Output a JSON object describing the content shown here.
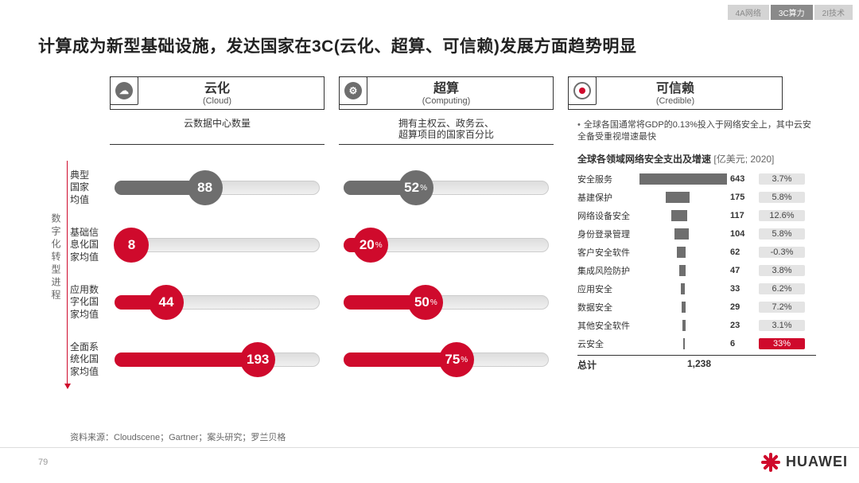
{
  "tabs": [
    {
      "label": "4A网络",
      "active": false
    },
    {
      "label": "3C算力",
      "active": true
    },
    {
      "label": "2I技术",
      "active": false
    }
  ],
  "title": "计算成为新型基础设施，发达国家在3C(云化、超算、可信赖)发展方面趋势明显",
  "columns": [
    {
      "title": "云化",
      "sub": "(Cloud)",
      "subtitle": "云数据中心数量"
    },
    {
      "title": "超算",
      "sub": "(Computing)",
      "subtitle": "拥有主权云、政务云、\n超算项目的国家百分比"
    },
    {
      "title": "可信赖",
      "sub": "(Credible)"
    }
  ],
  "vertical_label": "数字化转型进程",
  "row_labels": [
    "典型\n国家\n均值",
    "基础信\n息化国\n家均值",
    "应用数\n字化国\n家均值",
    "全面系\n统化国\n家均值"
  ],
  "cloud_bars": {
    "type": "horizontal-bubble-bar",
    "max": 200,
    "colors": {
      "avg": "#6e6e6e",
      "stage": "#cf0a2c",
      "track": "#e8e8e8"
    },
    "rows": [
      {
        "value": 88,
        "unit": "",
        "color": "avg",
        "fill_pct": 44
      },
      {
        "value": 8,
        "unit": "",
        "color": "stage",
        "fill_pct": 8
      },
      {
        "value": 44,
        "unit": "",
        "color": "stage",
        "fill_pct": 25
      },
      {
        "value": 193,
        "unit": "",
        "color": "stage",
        "fill_pct": 70
      }
    ]
  },
  "computing_bars": {
    "type": "horizontal-bubble-bar",
    "max": 100,
    "rows": [
      {
        "value": 52,
        "unit": "%",
        "color": "avg",
        "fill_pct": 35
      },
      {
        "value": 20,
        "unit": "%",
        "color": "stage",
        "fill_pct": 13
      },
      {
        "value": 50,
        "unit": "%",
        "color": "stage",
        "fill_pct": 40
      },
      {
        "value": 75,
        "unit": "%",
        "color": "stage",
        "fill_pct": 55
      }
    ]
  },
  "credible": {
    "intro": "全球各国通常将GDP的0.13%投入于网络安全上，其中云安全备受重视增速最快",
    "title": "全球各领域网络安全支出及增速",
    "unit": "[亿美元; 2020]",
    "max_value": 643,
    "bar_color": "#6e6e6e",
    "rows": [
      {
        "label": "安全服务",
        "value": 643,
        "growth": "3.7%",
        "hl": false,
        "offset": 0
      },
      {
        "label": "基建保护",
        "value": 175,
        "growth": "5.8%",
        "hl": false,
        "offset": 60
      },
      {
        "label": "网络设备安全",
        "value": 117,
        "growth": "12.6%",
        "hl": false,
        "offset": 72
      },
      {
        "label": "身份登录管理",
        "value": 104,
        "growth": "5.8%",
        "hl": false,
        "offset": 80
      },
      {
        "label": "客户安全软件",
        "value": 62,
        "growth": "-0.3%",
        "hl": false,
        "offset": 86
      },
      {
        "label": "集成风险防护",
        "value": 47,
        "growth": "3.8%",
        "hl": false,
        "offset": 90
      },
      {
        "label": "应用安全",
        "value": 33,
        "growth": "6.2%",
        "hl": false,
        "offset": 94
      },
      {
        "label": "数据安全",
        "value": 29,
        "growth": "7.2%",
        "hl": false,
        "offset": 96
      },
      {
        "label": "其他安全软件",
        "value": 23,
        "growth": "3.1%",
        "hl": false,
        "offset": 98
      },
      {
        "label": "云安全",
        "value": 6,
        "growth": "33%",
        "hl": true,
        "offset": 100
      }
    ],
    "total_label": "总计",
    "total_value": "1,238"
  },
  "source": "资料来源：Cloudscene；Gartner；案头研究；罗兰贝格",
  "page_number": "79",
  "logo_text": "HUAWEI",
  "colors": {
    "red": "#cf0a2c",
    "gray": "#6e6e6e",
    "lightgray": "#e4e4e4"
  }
}
